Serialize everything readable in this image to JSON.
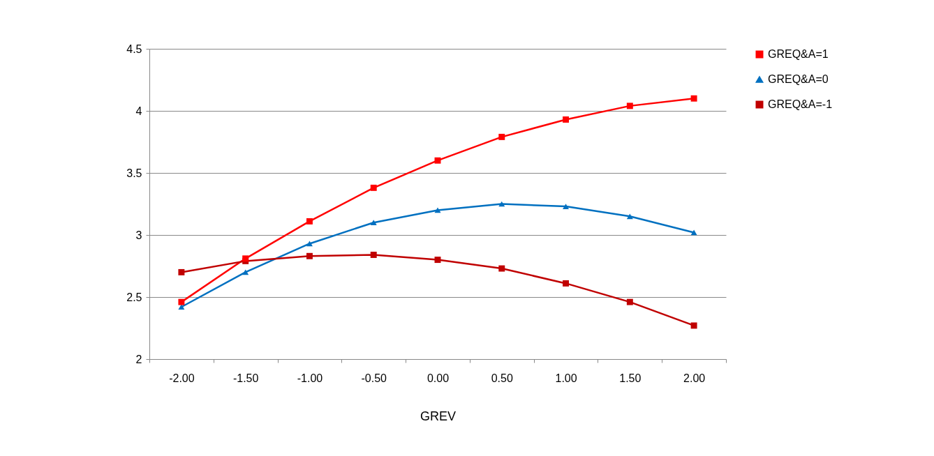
{
  "chart_data": {
    "type": "line",
    "xlabel": "GREV",
    "categories": [
      "-2.00",
      "-1.50",
      "-1.00",
      "-0.50",
      "0.00",
      "0.50",
      "1.00",
      "1.50",
      "2.00"
    ],
    "ylim": [
      2,
      4.5
    ],
    "yticks": [
      {
        "value": 2,
        "label": "2"
      },
      {
        "value": 2.5,
        "label": "2.5"
      },
      {
        "value": 3,
        "label": "3"
      },
      {
        "value": 3.5,
        "label": "3.5"
      },
      {
        "value": 4,
        "label": "4"
      },
      {
        "value": 4.5,
        "label": "4.5"
      }
    ],
    "grid": "y",
    "legend": "right",
    "line_style": "solid",
    "series": [
      {
        "name": "GREQ&A=1",
        "color": "#ff0000",
        "marker": "square",
        "values": [
          2.46,
          2.81,
          3.11,
          3.38,
          3.6,
          3.79,
          3.93,
          4.04,
          4.1
        ]
      },
      {
        "name": "GREQ&A=0",
        "color": "#0070c0",
        "marker": "triangle",
        "values": [
          2.42,
          2.7,
          2.93,
          3.1,
          3.2,
          3.25,
          3.23,
          3.15,
          3.02
        ]
      },
      {
        "name": "GREQ&A=-1",
        "color": "#c00000",
        "marker": "square",
        "values": [
          2.7,
          2.79,
          2.83,
          2.84,
          2.8,
          2.73,
          2.61,
          2.46,
          2.27
        ]
      }
    ]
  }
}
